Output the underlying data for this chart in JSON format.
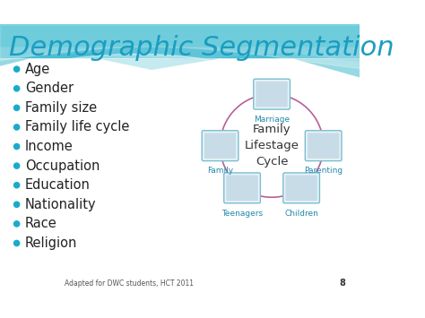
{
  "title": "Demographic Segmentation",
  "title_color": "#1A9DC0",
  "title_fontsize": 22,
  "bullet_items": [
    "Age",
    "Gender",
    "Family size",
    "Family life cycle",
    "Income",
    "Occupation",
    "Education",
    "Nationality",
    "Race",
    "Religion"
  ],
  "bullet_color": "#1AABCC",
  "bullet_text_color": "#222222",
  "bullet_fontsize": 10.5,
  "cycle_label": "Family\nLifestage\nCycle",
  "cycle_nodes": [
    "Marriage",
    "Parenting",
    "Children",
    "Teenagers",
    "Family"
  ],
  "cycle_node_angles_deg": [
    90,
    0,
    -55,
    -125,
    180
  ],
  "cycle_node_colors": [
    "#DDEEFF",
    "#DDEEFF",
    "#DDEEFF",
    "#DDEEFF",
    "#DDEEFF"
  ],
  "cycle_arrow_color": "#AA4488",
  "footer_text": "Adapted for DWC students, HCT 2011",
  "footer_page": "8",
  "bg_color": "#FFFFFF",
  "header_teal": "#40BCD0",
  "header_light": "#A8DDE8",
  "wave1_color": "#50C0D0",
  "wave2_color": "#88D8E8"
}
